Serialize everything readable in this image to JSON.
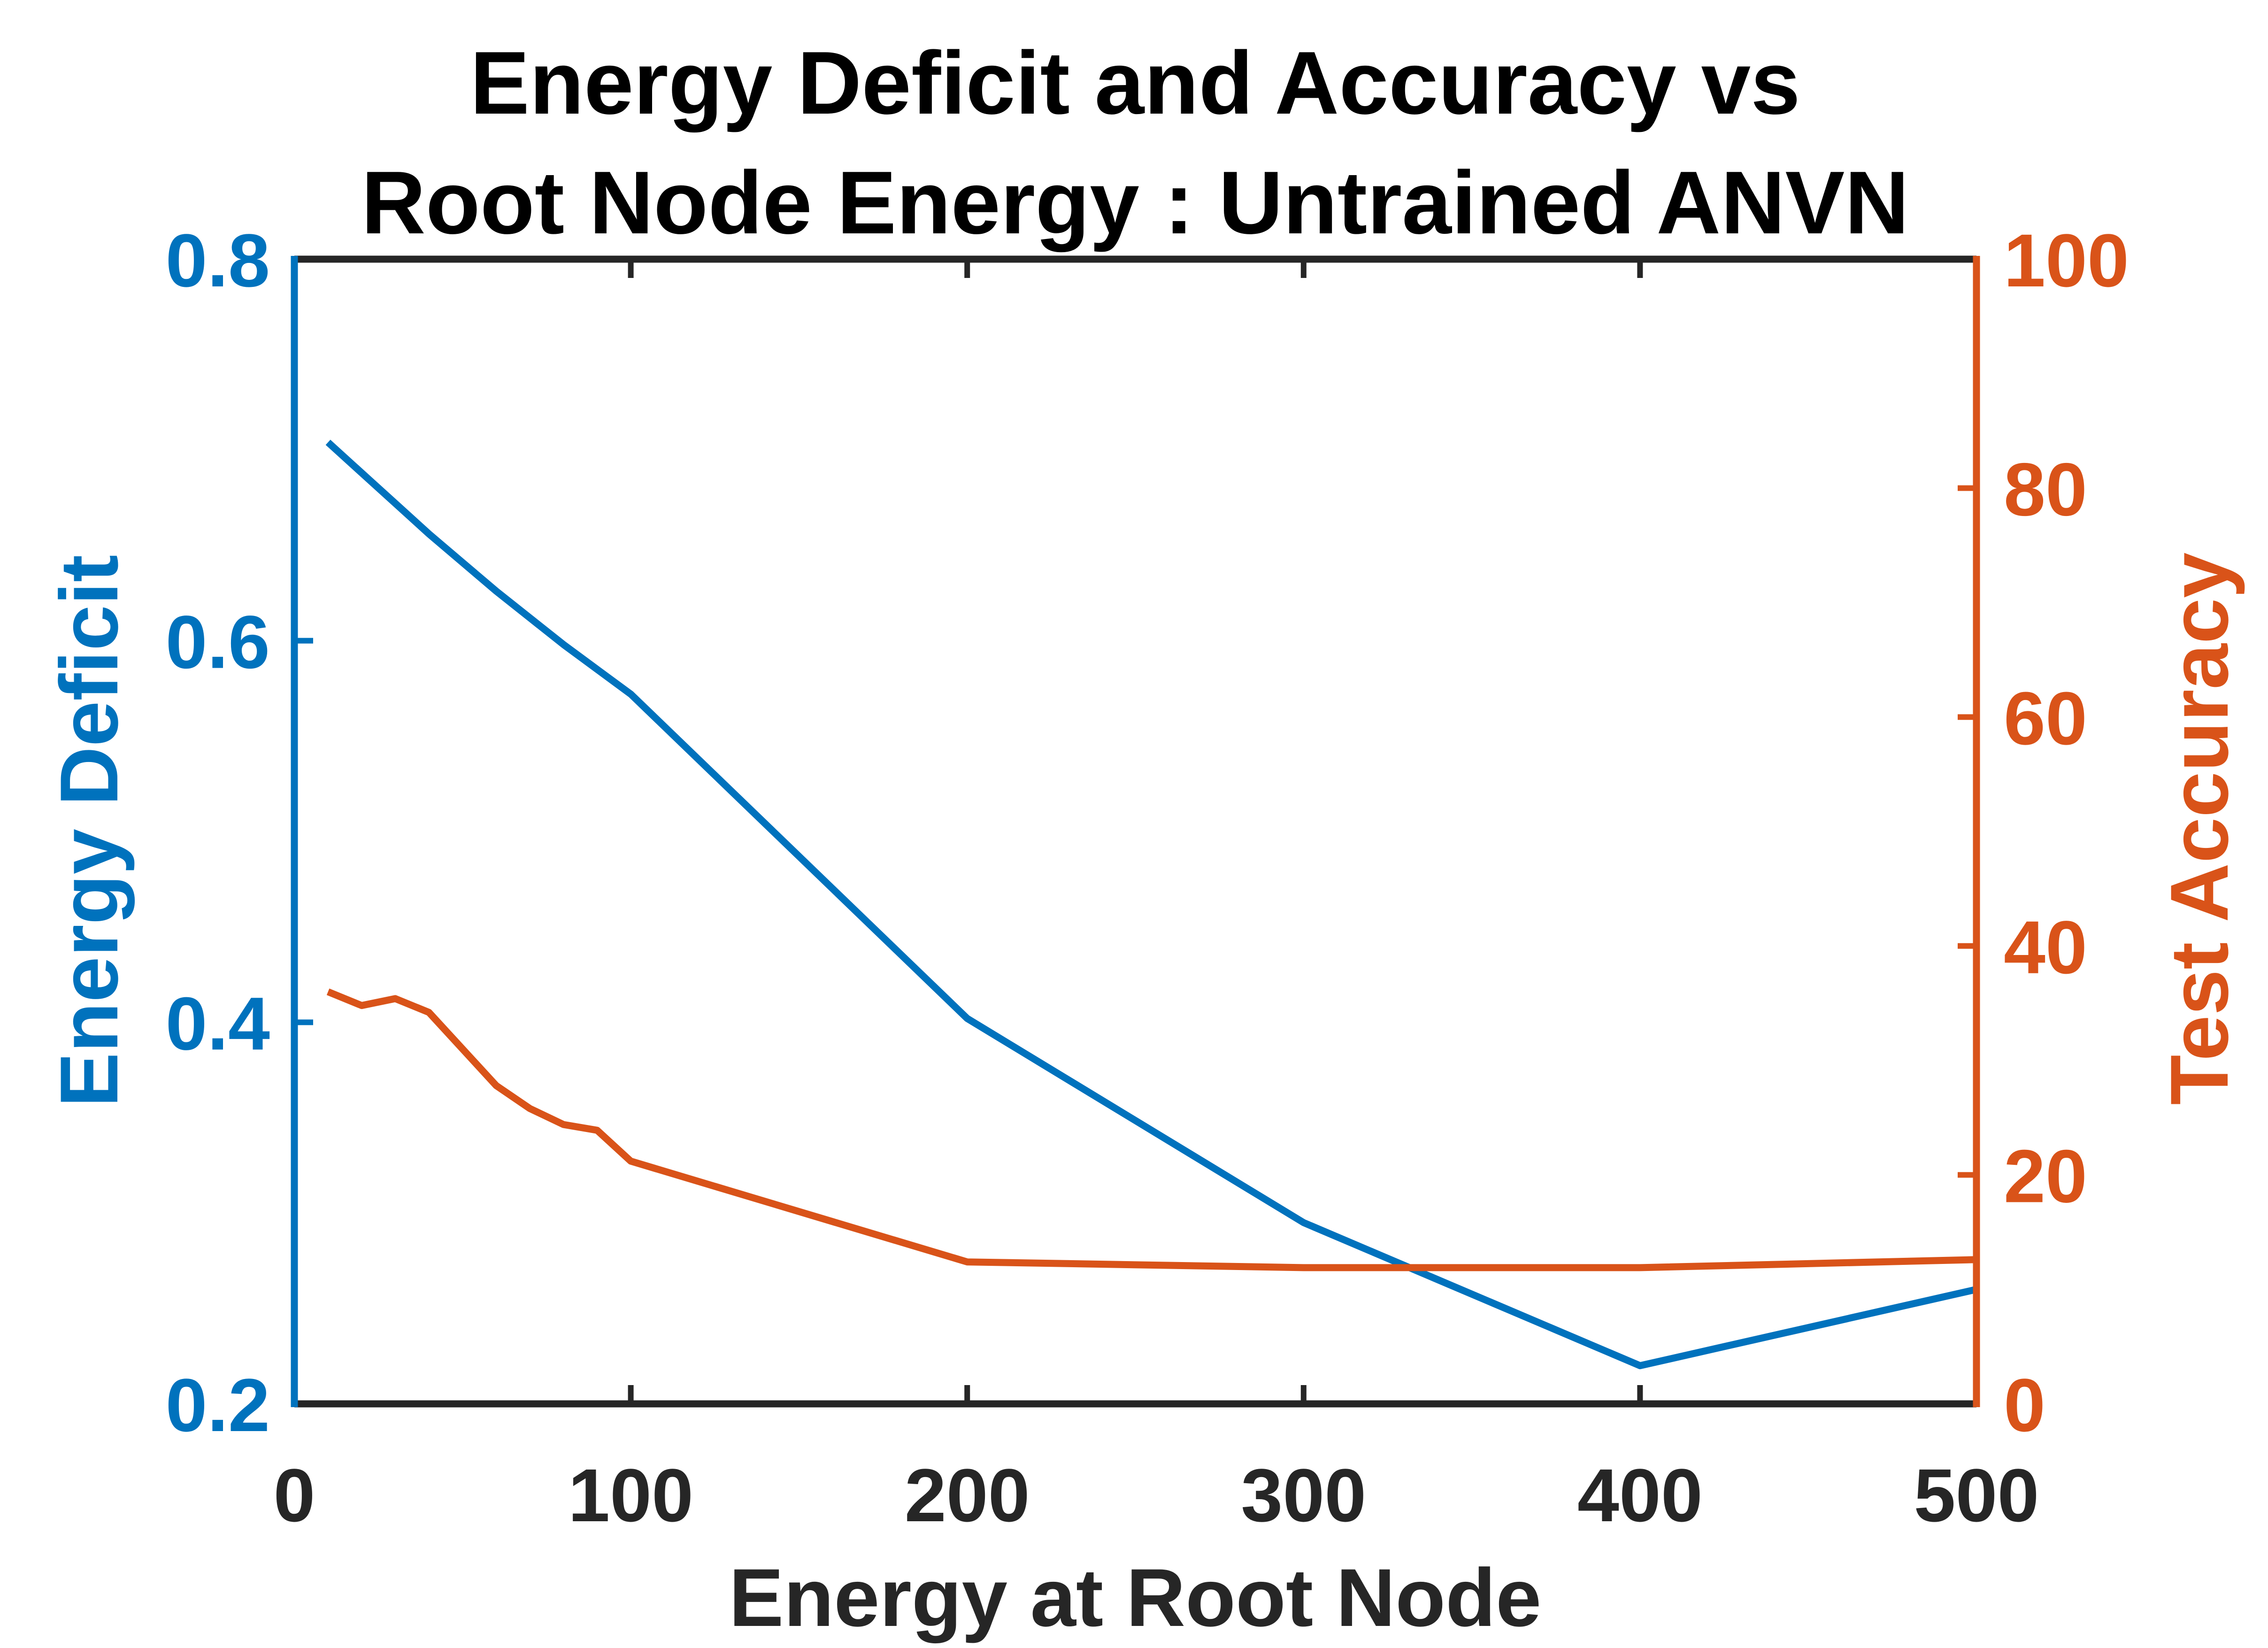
{
  "chart_data": {
    "type": "line",
    "title": [
      "Energy Deficit and Accuracy vs",
      "Root Node Energy : Untrained ANVN"
    ],
    "xlabel": "Energy at Root Node",
    "ylabel_left": "Energy Deficit",
    "ylabel_right": "Test Accuracy",
    "xlim": [
      0,
      500
    ],
    "ylim_left": [
      0.2,
      0.8
    ],
    "ylim_right": [
      0,
      100
    ],
    "x_ticks": [
      "0",
      "100",
      "200",
      "300",
      "400",
      "500"
    ],
    "y_left_ticks": [
      "0.2",
      "0.4",
      "0.6",
      "0.8"
    ],
    "y_right_ticks": [
      "0",
      "20",
      "40",
      "60",
      "80",
      "100"
    ],
    "grid": false,
    "colors": {
      "left_axis": "#0072BD",
      "right_axis": "#D95319",
      "frame": "#262626"
    },
    "series": [
      {
        "axis": "left",
        "color": "#0072BD",
        "points": [
          [
            10,
            0.704
          ],
          [
            20,
            0.688
          ],
          [
            30,
            0.672
          ],
          [
            40,
            0.656
          ],
          [
            50,
            0.641
          ],
          [
            60,
            0.626
          ],
          [
            70,
            0.612
          ],
          [
            80,
            0.598
          ],
          [
            90,
            0.585
          ],
          [
            100,
            0.572
          ],
          [
            200,
            0.402
          ],
          [
            300,
            0.295
          ],
          [
            400,
            0.22
          ],
          [
            500,
            0.26
          ]
        ]
      },
      {
        "axis": "right",
        "color": "#D95319",
        "points": [
          [
            10,
            36.0
          ],
          [
            20,
            34.8
          ],
          [
            30,
            35.4
          ],
          [
            40,
            34.2
          ],
          [
            50,
            31.0
          ],
          [
            60,
            27.8
          ],
          [
            70,
            25.8
          ],
          [
            80,
            24.4
          ],
          [
            90,
            23.9
          ],
          [
            100,
            21.2
          ],
          [
            200,
            12.4
          ],
          [
            300,
            11.9
          ],
          [
            400,
            11.9
          ],
          [
            500,
            12.6
          ]
        ]
      }
    ]
  }
}
